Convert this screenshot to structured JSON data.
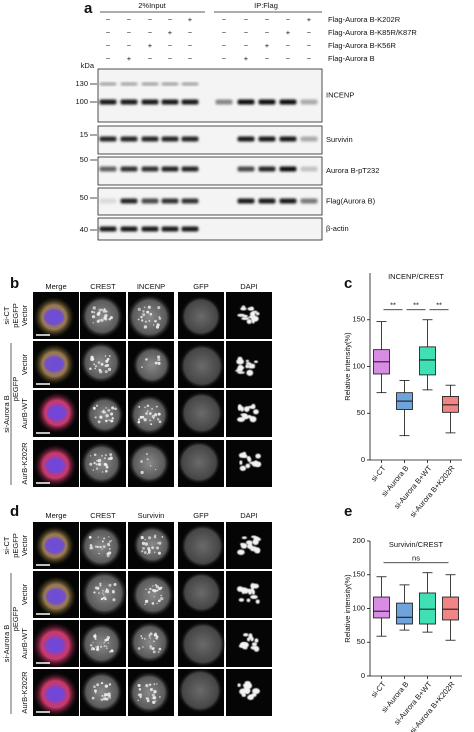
{
  "panel_a": {
    "letter": "a",
    "groups": [
      "2%Input",
      "IP:Flag"
    ],
    "conditions": [
      {
        "label": "Flag-Aurora B-K202R",
        "signs": [
          "−",
          "−",
          "−",
          "−",
          "+",
          "−",
          "−",
          "−",
          "−",
          "+"
        ]
      },
      {
        "label": "Flag-Aurora B-K85R/K87R",
        "signs": [
          "−",
          "−",
          "−",
          "+",
          "−",
          "−",
          "−",
          "−",
          "+",
          "−"
        ]
      },
      {
        "label": "Flag-Aurora B-K56R",
        "signs": [
          "−",
          "−",
          "+",
          "−",
          "−",
          "−",
          "−",
          "+",
          "−",
          "−"
        ]
      },
      {
        "label": "Flag-Aurora B",
        "signs": [
          "−",
          "+",
          "−",
          "−",
          "−",
          "−",
          "+",
          "−",
          "−",
          "−"
        ]
      }
    ],
    "kda_label": "kDa",
    "blots": [
      {
        "label": "INCENP",
        "markers": [
          "130",
          "100"
        ]
      },
      {
        "label": "Survivin",
        "markers": [
          "15"
        ]
      },
      {
        "label": "Aurora B-pT232",
        "markers": [
          "50"
        ]
      },
      {
        "label": "Flag(Aurora B)",
        "markers": [
          "50"
        ]
      },
      {
        "label": "β-actin",
        "markers": [
          "40"
        ]
      }
    ]
  },
  "panel_b": {
    "letter": "b",
    "columns": [
      "Merge",
      "CREST",
      "INCENP",
      "GFP",
      "DAPI"
    ],
    "column_colors": [
      "#111111",
      "#b03cc8",
      "#d42020",
      "#2ca02c",
      "#1f3fbf"
    ],
    "row_labels": [
      "si-CT",
      "pEGFP",
      "Vector",
      "si-Aurora B",
      "pEGFP",
      "Vector",
      "AurB-WT",
      "AurB-K202R"
    ]
  },
  "panel_d": {
    "letter": "d",
    "columns": [
      "Merge",
      "CREST",
      "Survivin",
      "GFP",
      "DAPI"
    ],
    "column_colors": [
      "#111111",
      "#b03cc8",
      "#d42020",
      "#2ca02c",
      "#1f3fbf"
    ],
    "row_labels": [
      "si-CT",
      "pEGFP",
      "Vector",
      "si-Aurora B",
      "pEGFP",
      "Vector",
      "AurB-WT",
      "AurB-K202R"
    ]
  },
  "chart_data": [
    {
      "type": "box",
      "letter": "c",
      "title": "INCENP/CREST",
      "ylabel": "Relative intensity(%)",
      "categories": [
        "si-CT",
        "si-Aurora B",
        "si-Aurora B+WT",
        "si-Aurora B+K202R"
      ],
      "colors": [
        "#d98ce6",
        "#6fa3dc",
        "#3fe0b4",
        "#f08585"
      ],
      "min": [
        72,
        26,
        75,
        29
      ],
      "q1": [
        92,
        54,
        91,
        51
      ],
      "median": [
        105,
        63,
        107,
        59
      ],
      "q3": [
        118,
        72,
        121,
        68
      ],
      "max": [
        148,
        85,
        150,
        80
      ],
      "ylim": [
        0,
        200
      ],
      "yticks": [
        0,
        50,
        100,
        150
      ],
      "significance": [
        {
          "from": 0,
          "to": 1,
          "label": "**"
        },
        {
          "from": 1,
          "to": 2,
          "label": "**"
        },
        {
          "from": 2,
          "to": 3,
          "label": "**"
        }
      ]
    },
    {
      "type": "box",
      "letter": "e",
      "title": "Survivin/CREST",
      "ylabel": "Relative intensity(%)",
      "categories": [
        "si-CT",
        "si-Aurora B",
        "si-Aurora B+WT",
        "si-Aurora B+K202R"
      ],
      "colors": [
        "#d98ce6",
        "#6fa3dc",
        "#3fe0b4",
        "#f08585"
      ],
      "min": [
        59,
        68,
        65,
        53
      ],
      "q1": [
        86,
        77,
        77,
        83
      ],
      "median": [
        96,
        87,
        99,
        99
      ],
      "q3": [
        117,
        108,
        123,
        117
      ],
      "max": [
        147,
        135,
        153,
        150
      ],
      "ylim": [
        0,
        200
      ],
      "yticks": [
        0,
        50,
        100,
        150,
        200
      ],
      "significance": [
        {
          "from": 0,
          "to": 3,
          "label": "ns"
        }
      ]
    }
  ]
}
